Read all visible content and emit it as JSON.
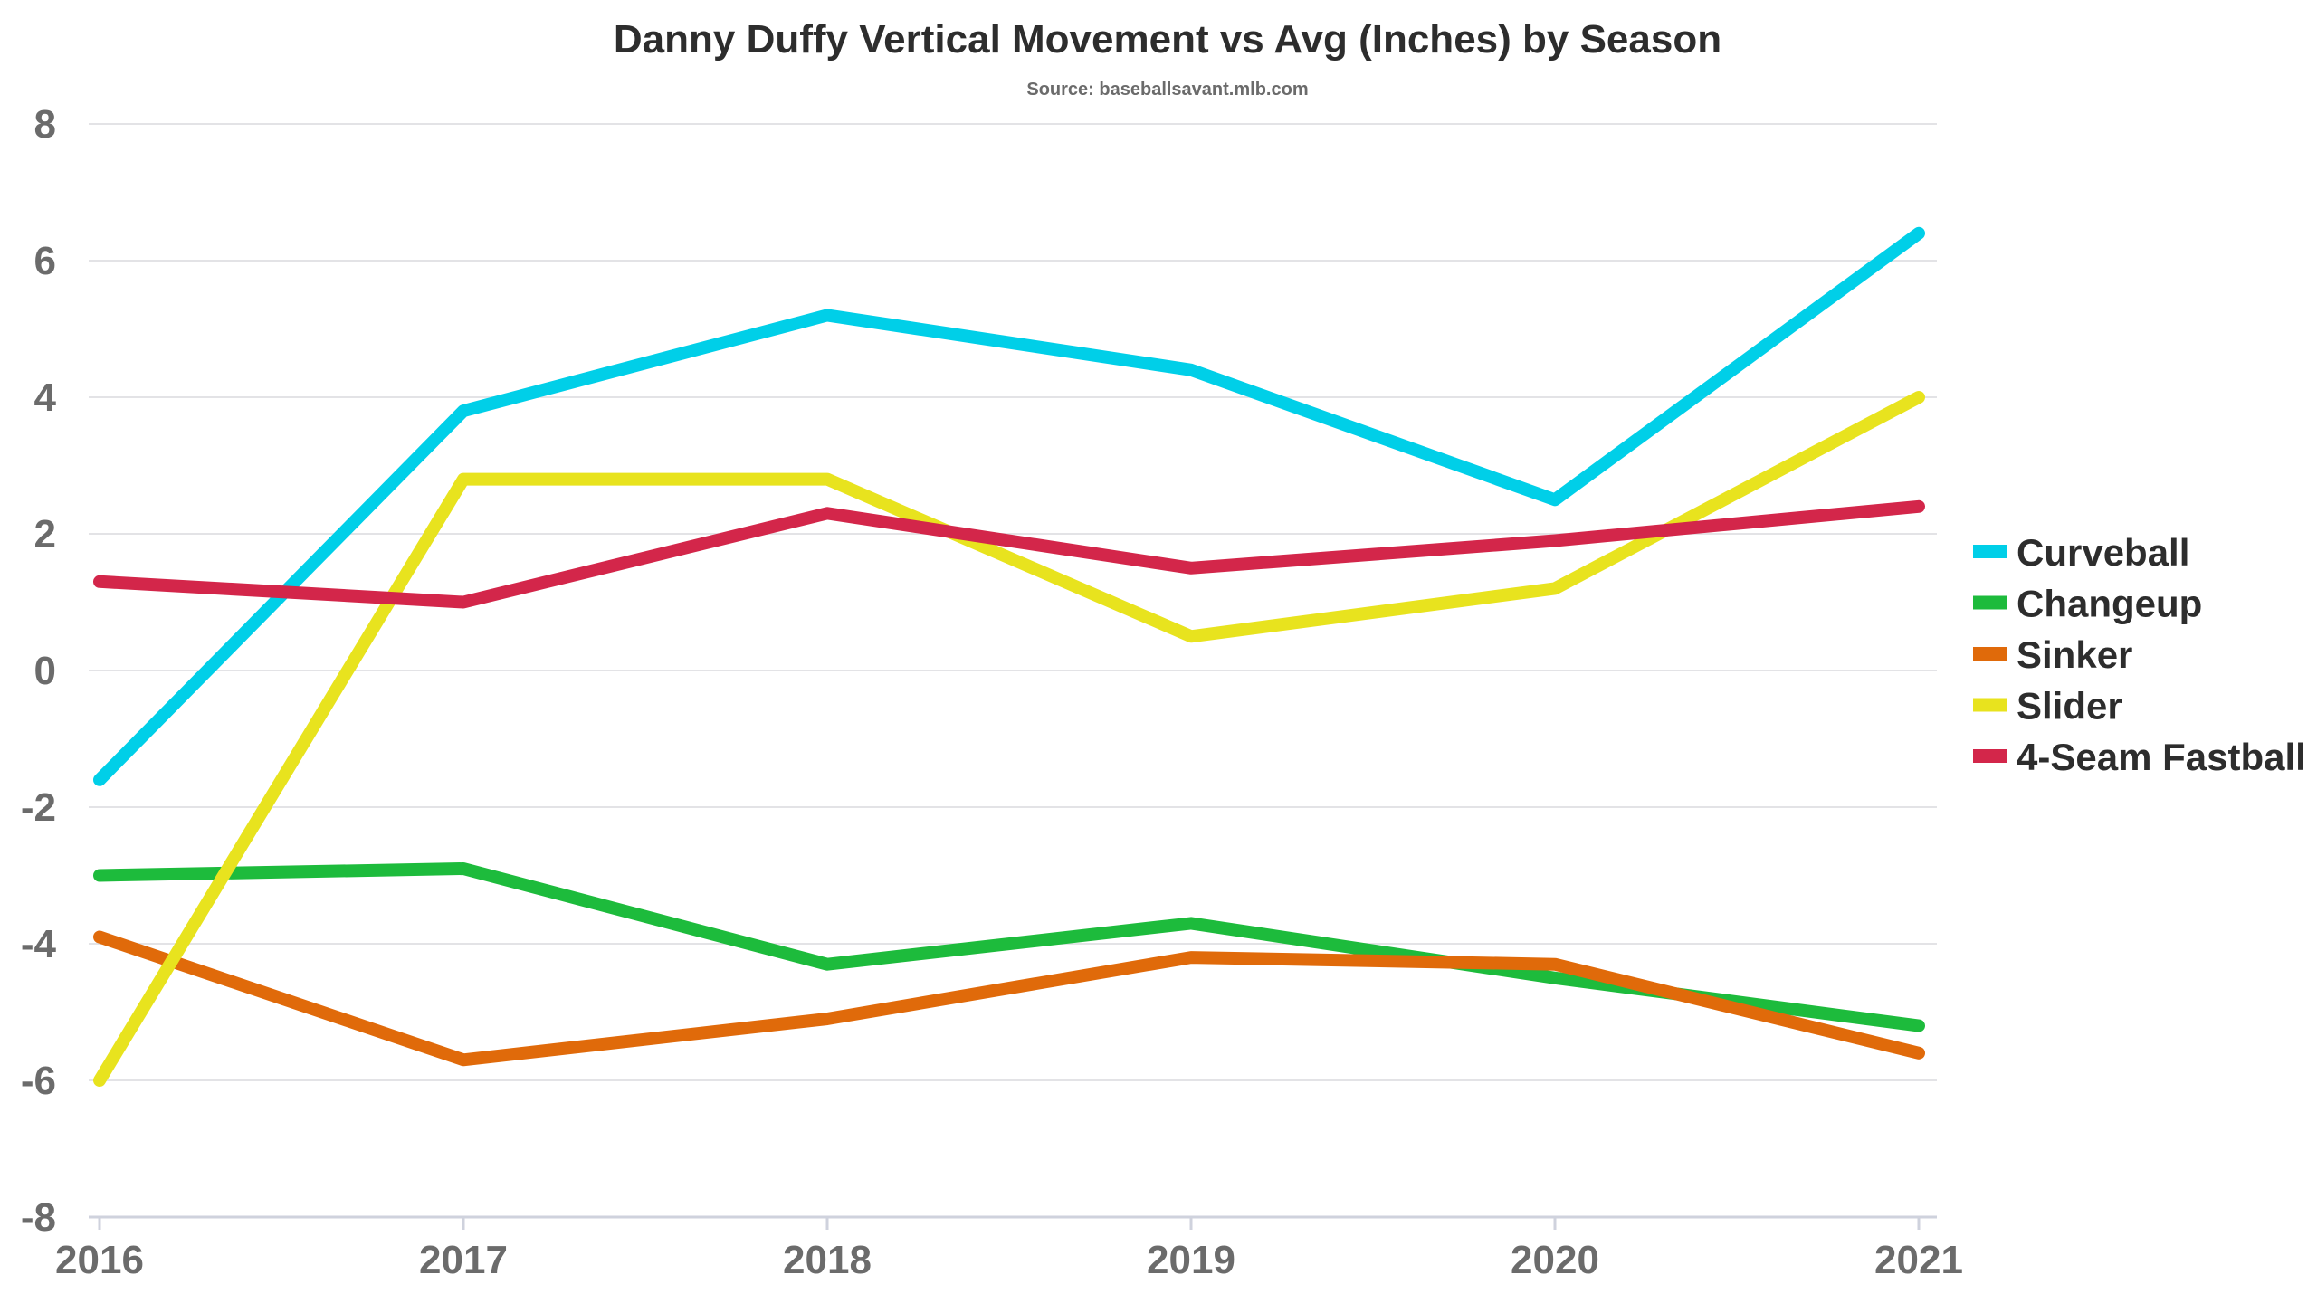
{
  "chart_data": {
    "type": "line",
    "title": "Danny Duffy Vertical Movement vs Avg (Inches) by Season",
    "subtitle": "Source: baseballsavant.mlb.com",
    "xlabel": "",
    "ylabel": "",
    "x": [
      "2016",
      "2017",
      "2018",
      "2019",
      "2020",
      "2021"
    ],
    "ylim": [
      -8,
      8
    ],
    "yticks": [
      "8",
      "6",
      "4",
      "2",
      "0",
      "-2",
      "-4",
      "-6",
      "-8"
    ],
    "ytick_values": [
      8,
      6,
      4,
      2,
      0,
      -2,
      -4,
      -6,
      -8
    ],
    "grid": true,
    "legend_position": "right",
    "series": [
      {
        "name": "Curveball",
        "color": "#00cfe8",
        "values": [
          -1.6,
          3.8,
          5.2,
          4.4,
          2.5,
          6.4
        ]
      },
      {
        "name": "Changeup",
        "color": "#1dbb3c",
        "values": [
          -3.0,
          -2.9,
          -4.3,
          -3.7,
          -4.5,
          -5.2
        ]
      },
      {
        "name": "Sinker",
        "color": "#e06a0a",
        "values": [
          -3.9,
          -5.7,
          -5.1,
          -4.2,
          -4.3,
          -5.6
        ]
      },
      {
        "name": "Slider",
        "color": "#e8e31e",
        "values": [
          -6.0,
          2.8,
          2.8,
          0.5,
          1.2,
          4.0
        ]
      },
      {
        "name": "4-Seam Fastball",
        "color": "#d3264a",
        "values": [
          1.3,
          1.0,
          2.3,
          1.5,
          1.9,
          2.4
        ]
      }
    ]
  }
}
